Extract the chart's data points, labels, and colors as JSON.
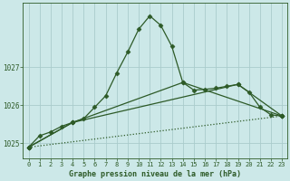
{
  "title": "Graphe pression niveau de la mer (hPa)",
  "bg_color": "#cce8e8",
  "grid_color": "#aacccc",
  "line_color": "#2d5a27",
  "xlim": [
    -0.5,
    23.5
  ],
  "ylim": [
    1024.6,
    1028.7
  ],
  "yticks": [
    1025,
    1026,
    1027
  ],
  "xticks": [
    0,
    1,
    2,
    3,
    4,
    5,
    6,
    7,
    8,
    9,
    10,
    11,
    12,
    13,
    14,
    15,
    16,
    17,
    18,
    19,
    20,
    21,
    22,
    23
  ],
  "series_main": {
    "x": [
      0,
      1,
      2,
      3,
      4,
      5,
      6,
      7,
      8,
      9,
      10,
      11,
      12,
      13,
      14,
      15,
      16,
      17,
      18,
      19,
      20,
      21,
      22,
      23
    ],
    "y": [
      1024.9,
      1025.2,
      1025.3,
      1025.45,
      1025.55,
      1025.65,
      1025.95,
      1026.25,
      1026.85,
      1027.4,
      1028.0,
      1028.35,
      1028.1,
      1027.55,
      1026.6,
      1026.4,
      1026.42,
      1026.45,
      1026.5,
      1026.55,
      1026.35,
      1025.95,
      1025.75,
      1025.72
    ]
  },
  "series_line1": {
    "x": [
      0,
      4,
      14,
      23
    ],
    "y": [
      1024.9,
      1025.55,
      1026.6,
      1025.72
    ]
  },
  "series_line2": {
    "x": [
      0,
      4,
      19,
      23
    ],
    "y": [
      1024.9,
      1025.55,
      1026.55,
      1025.72
    ]
  },
  "series_dotted": {
    "x": [
      0,
      23
    ],
    "y": [
      1024.9,
      1025.72
    ]
  },
  "marker": "D",
  "markersize": 2.5,
  "linewidth": 0.9
}
